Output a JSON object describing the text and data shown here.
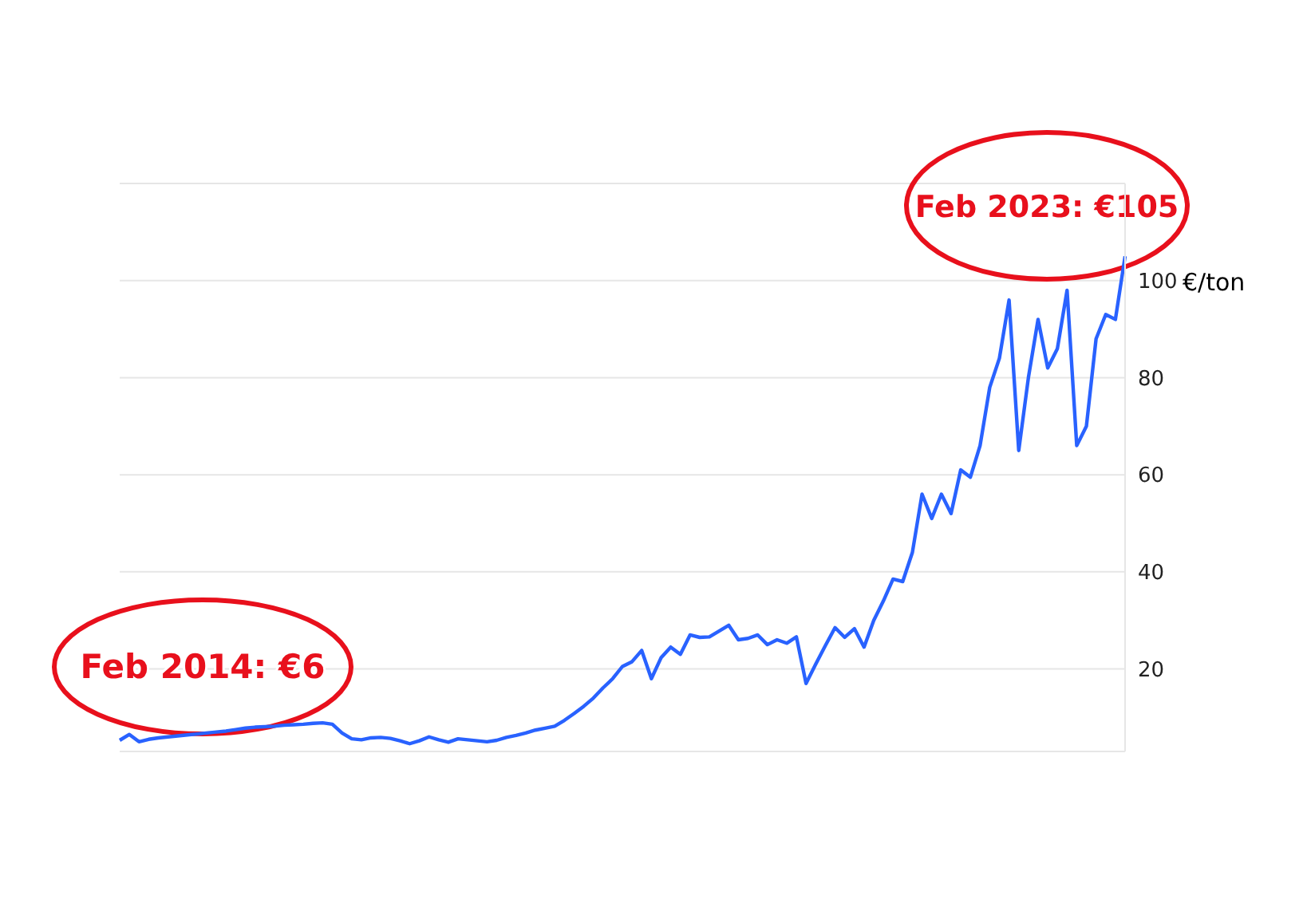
{
  "chart_data": {
    "type": "line",
    "ylabel": "€/ton",
    "ylim": [
      3,
      120
    ],
    "yticks": [
      20,
      40,
      60,
      80,
      100
    ],
    "grid": "y",
    "tick_labels": "y",
    "marker": "none",
    "line_style": "solid",
    "categories": [
      null,
      null,
      null,
      null,
      null,
      null,
      null,
      null,
      null,
      null,
      null,
      null,
      null,
      null,
      null,
      null,
      null,
      null,
      null,
      null,
      null,
      null,
      null,
      null,
      null,
      null,
      null,
      null,
      null,
      null,
      null,
      null,
      null,
      null,
      null,
      null,
      null,
      null,
      null,
      null,
      null,
      null,
      null,
      null,
      null,
      null,
      null,
      null,
      null,
      null,
      null,
      null,
      null,
      null,
      null,
      null,
      null,
      null,
      null,
      null,
      null,
      null,
      null,
      null,
      null,
      null,
      null,
      null,
      null,
      null,
      null,
      null,
      null,
      null,
      null,
      null,
      null,
      null,
      null,
      null,
      null,
      null,
      null,
      null,
      null,
      null,
      null,
      null,
      null,
      null,
      null,
      null,
      null,
      null,
      null,
      null,
      null,
      null,
      null,
      null,
      null,
      null,
      null,
      null,
      null
    ],
    "series": [
      {
        "color": "#2962ff",
        "values": [
          5.3,
          6.5,
          5,
          5.5,
          5.8,
          6,
          6.2,
          6.4,
          6.6,
          6.8,
          7,
          7.2,
          7.5,
          7.8,
          8,
          8.1,
          8.2,
          8.4,
          8.5,
          8.6,
          8.8,
          8.9,
          8.6,
          6.8,
          5.6,
          5.4,
          5.8,
          5.9,
          5.7,
          5.2,
          4.6,
          5.2,
          6,
          5.4,
          4.9,
          5.6,
          5.4,
          5.2,
          5,
          5.3,
          5.9,
          6.3,
          6.8,
          7.4,
          7.8,
          8.2,
          9.4,
          10.8,
          12.3,
          14,
          16.1,
          18,
          20.5,
          21.5,
          23.8,
          18,
          22.3,
          24.5,
          23,
          27,
          26.5,
          26.6,
          27.8,
          29,
          26,
          26.3,
          27,
          25,
          26,
          25.3,
          26.6,
          17,
          21,
          24.8,
          28.5,
          26.5,
          28.3,
          24.5,
          30,
          34,
          38.5,
          38,
          44,
          56,
          51,
          56,
          52,
          61,
          59.5,
          66,
          78,
          84,
          96,
          65,
          80,
          92,
          82,
          86,
          98,
          66,
          70,
          88,
          93,
          92,
          105
        ]
      }
    ],
    "annotations": [
      "Feb 2014: €6",
      "Feb 2023: €105"
    ]
  }
}
